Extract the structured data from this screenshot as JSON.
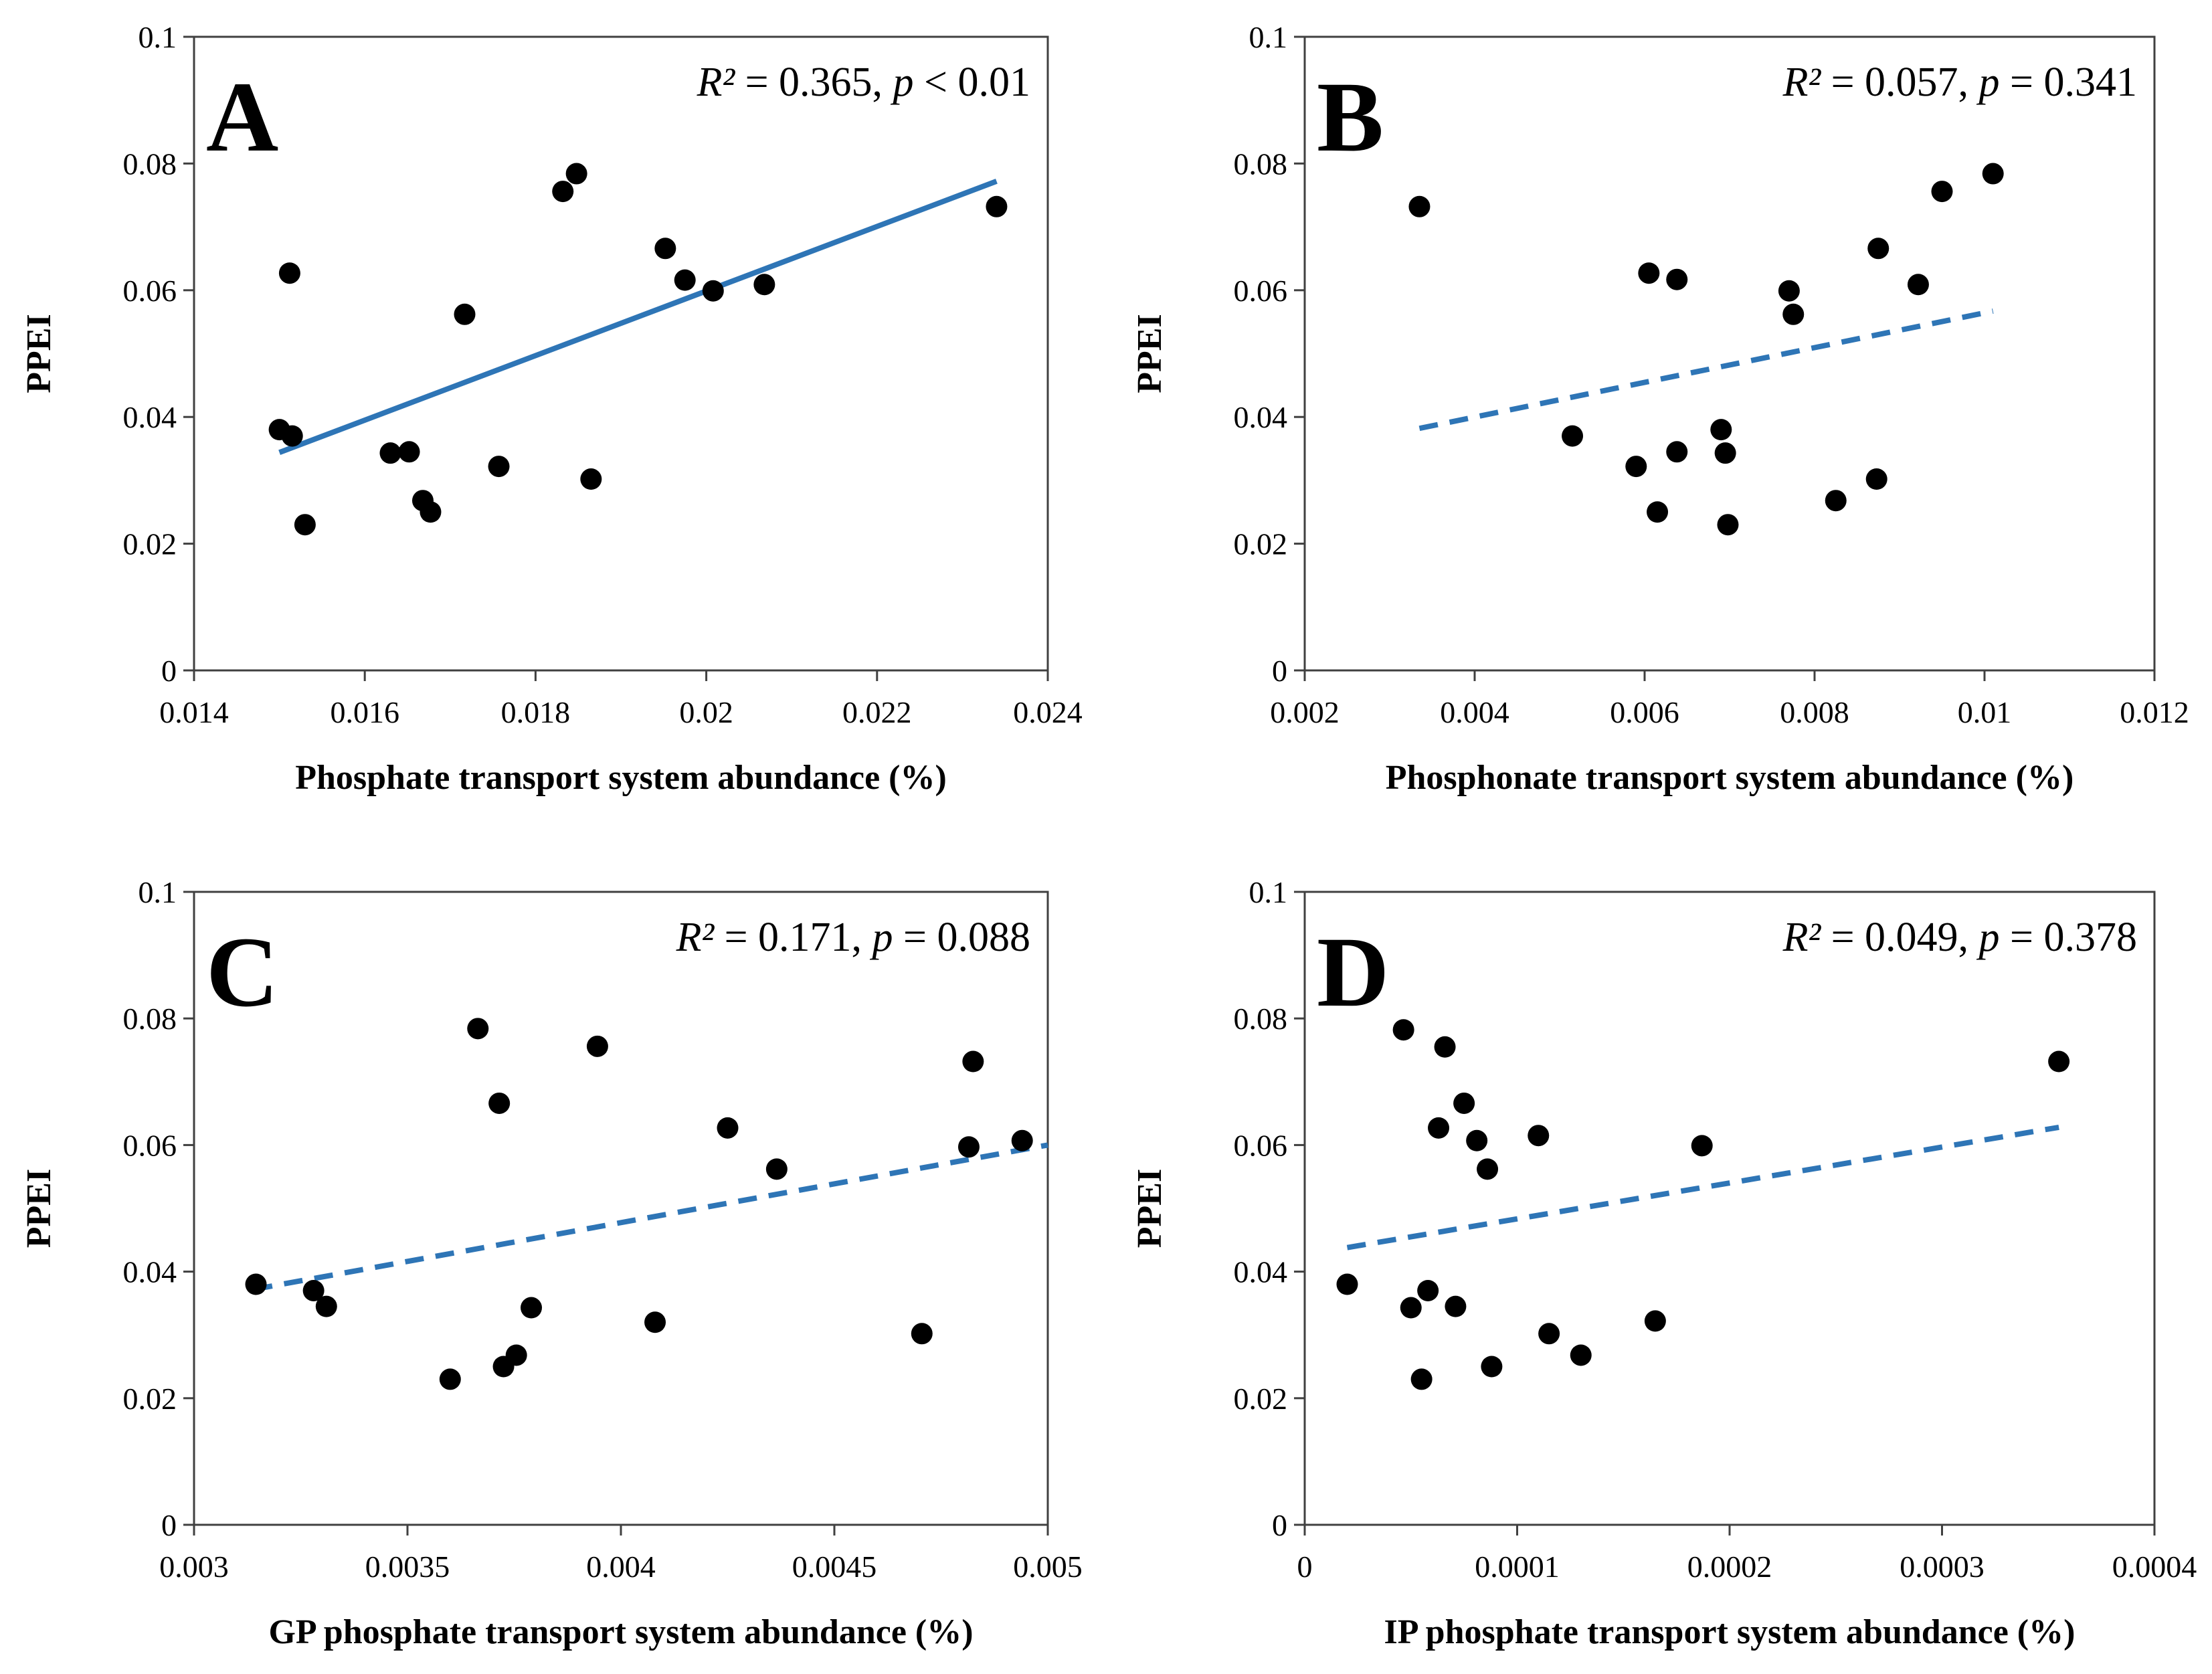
{
  "colors": {
    "marker": "#000000",
    "trendline": "#2e75b6",
    "axis": "#404040"
  },
  "chart_data": [
    {
      "type": "scatter",
      "panel_label": "A",
      "stat_text": {
        "r2_label": "R²",
        "r2_value": " = 0.365, ",
        "p_label": "p",
        "p_value": " < 0.01"
      },
      "xlabel": "Phosphate transport system abundance (%)",
      "ylabel": "PPEI",
      "xlim": [
        0.014,
        0.024
      ],
      "ylim": [
        0,
        0.1
      ],
      "xticks": [
        "0.014",
        "0.016",
        "0.018",
        "0.02",
        "0.022",
        "0.024"
      ],
      "yticks": [
        "0",
        "0.02",
        "0.04",
        "0.06",
        "0.08",
        "0.1"
      ],
      "trendline": {
        "style": "solid",
        "x": [
          0.015,
          0.0234
        ],
        "y": [
          0.0344,
          0.0772
        ]
      },
      "points": [
        {
          "x": 0.015,
          "y": 0.038
        },
        {
          "x": 0.01515,
          "y": 0.037
        },
        {
          "x": 0.01512,
          "y": 0.0627
        },
        {
          "x": 0.0153,
          "y": 0.023
        },
        {
          "x": 0.0163,
          "y": 0.0343
        },
        {
          "x": 0.01652,
          "y": 0.0345
        },
        {
          "x": 0.01668,
          "y": 0.0268
        },
        {
          "x": 0.01677,
          "y": 0.025
        },
        {
          "x": 0.01717,
          "y": 0.0562
        },
        {
          "x": 0.01757,
          "y": 0.0322
        },
        {
          "x": 0.01832,
          "y": 0.0756
        },
        {
          "x": 0.01848,
          "y": 0.0784
        },
        {
          "x": 0.01865,
          "y": 0.0302
        },
        {
          "x": 0.01952,
          "y": 0.0666
        },
        {
          "x": 0.01975,
          "y": 0.0616
        },
        {
          "x": 0.02008,
          "y": 0.0599
        },
        {
          "x": 0.02068,
          "y": 0.0609
        },
        {
          "x": 0.0234,
          "y": 0.0732
        }
      ]
    },
    {
      "type": "scatter",
      "panel_label": "B",
      "stat_text": {
        "r2_label": "R²",
        "r2_value": " = 0.057, ",
        "p_label": "p",
        "p_value": " = 0.341"
      },
      "xlabel": "Phosphonate transport system abundance (%)",
      "ylabel": "PPEI",
      "xlim": [
        0.002,
        0.012
      ],
      "ylim": [
        0,
        0.1
      ],
      "xticks": [
        "0.002",
        "0.004",
        "0.006",
        "0.008",
        "0.01",
        "0.012"
      ],
      "yticks": [
        "0",
        "0.02",
        "0.04",
        "0.06",
        "0.08",
        "0.1"
      ],
      "trendline": {
        "style": "dashed",
        "x": [
          0.00335,
          0.0101
        ],
        "y": [
          0.0382,
          0.0567
        ]
      },
      "points": [
        {
          "x": 0.00335,
          "y": 0.0732
        },
        {
          "x": 0.00515,
          "y": 0.037
        },
        {
          "x": 0.0059,
          "y": 0.0322
        },
        {
          "x": 0.00605,
          "y": 0.0627
        },
        {
          "x": 0.00615,
          "y": 0.025
        },
        {
          "x": 0.00638,
          "y": 0.0617
        },
        {
          "x": 0.00638,
          "y": 0.0345
        },
        {
          "x": 0.0069,
          "y": 0.038
        },
        {
          "x": 0.00695,
          "y": 0.0343
        },
        {
          "x": 0.00698,
          "y": 0.023
        },
        {
          "x": 0.0077,
          "y": 0.0599
        },
        {
          "x": 0.00775,
          "y": 0.0562
        },
        {
          "x": 0.00825,
          "y": 0.0268
        },
        {
          "x": 0.00873,
          "y": 0.0302
        },
        {
          "x": 0.00875,
          "y": 0.0666
        },
        {
          "x": 0.00922,
          "y": 0.0609
        },
        {
          "x": 0.0095,
          "y": 0.0756
        },
        {
          "x": 0.0101,
          "y": 0.0784
        }
      ]
    },
    {
      "type": "scatter",
      "panel_label": "C",
      "stat_text": {
        "r2_label": "R²",
        "r2_value": " = 0.171, ",
        "p_label": "p",
        "p_value": " = 0.088"
      },
      "xlabel": "GP phosphate transport system abundance (%)",
      "ylabel": "PPEI",
      "xlim": [
        0.003,
        0.005
      ],
      "ylim": [
        0,
        0.1
      ],
      "xticks": [
        "0.003",
        "0.0035",
        "0.004",
        "0.0045",
        "0.005"
      ],
      "yticks": [
        "0",
        "0.02",
        "0.04",
        "0.06",
        "0.08",
        "0.1"
      ],
      "trendline": {
        "style": "dashed",
        "x": [
          0.00314,
          0.005
        ],
        "y": [
          0.0372,
          0.06
        ]
      },
      "points": [
        {
          "x": 0.003145,
          "y": 0.038
        },
        {
          "x": 0.00328,
          "y": 0.037
        },
        {
          "x": 0.00331,
          "y": 0.0345
        },
        {
          "x": 0.0036,
          "y": 0.023
        },
        {
          "x": 0.003665,
          "y": 0.0784
        },
        {
          "x": 0.003715,
          "y": 0.0666
        },
        {
          "x": 0.003725,
          "y": 0.025
        },
        {
          "x": 0.003755,
          "y": 0.0268
        },
        {
          "x": 0.00379,
          "y": 0.0343
        },
        {
          "x": 0.003945,
          "y": 0.0756
        },
        {
          "x": 0.00408,
          "y": 0.032
        },
        {
          "x": 0.00425,
          "y": 0.0627
        },
        {
          "x": 0.004365,
          "y": 0.0562
        },
        {
          "x": 0.004705,
          "y": 0.0302
        },
        {
          "x": 0.004815,
          "y": 0.0597
        },
        {
          "x": 0.004825,
          "y": 0.0732
        },
        {
          "x": 0.00494,
          "y": 0.0607
        }
      ]
    },
    {
      "type": "scatter",
      "panel_label": "D",
      "stat_text": {
        "r2_label": "R²",
        "r2_value": " = 0.049, ",
        "p_label": "p",
        "p_value": " = 0.378"
      },
      "xlabel": "IP phosphate transport system abundance (%)",
      "ylabel": "PPEI",
      "xlim": [
        0,
        0.0004
      ],
      "ylim": [
        0,
        0.1
      ],
      "xticks": [
        "0",
        "0.0001",
        "0.0002",
        "0.0003",
        "0.0004"
      ],
      "yticks": [
        "0",
        "0.02",
        "0.04",
        "0.06",
        "0.08",
        "0.1"
      ],
      "trendline": {
        "style": "dashed",
        "x": [
          2e-05,
          0.000355
        ],
        "y": [
          0.0438,
          0.0628
        ]
      },
      "points": [
        {
          "x": 2e-05,
          "y": 0.038
        },
        {
          "x": 4.65e-05,
          "y": 0.0782
        },
        {
          "x": 5e-05,
          "y": 0.0343
        },
        {
          "x": 5.5e-05,
          "y": 0.023
        },
        {
          "x": 5.8e-05,
          "y": 0.037
        },
        {
          "x": 6.3e-05,
          "y": 0.0627
        },
        {
          "x": 6.6e-05,
          "y": 0.0755
        },
        {
          "x": 7.1e-05,
          "y": 0.0345
        },
        {
          "x": 7.5e-05,
          "y": 0.0666
        },
        {
          "x": 8.1e-05,
          "y": 0.0607
        },
        {
          "x": 8.6e-05,
          "y": 0.0562
        },
        {
          "x": 8.8e-05,
          "y": 0.025
        },
        {
          "x": 0.00011,
          "y": 0.0615
        },
        {
          "x": 0.000115,
          "y": 0.0302
        },
        {
          "x": 0.00013,
          "y": 0.0268
        },
        {
          "x": 0.000165,
          "y": 0.0322
        },
        {
          "x": 0.000187,
          "y": 0.0599
        },
        {
          "x": 0.000355,
          "y": 0.0732
        }
      ]
    }
  ]
}
